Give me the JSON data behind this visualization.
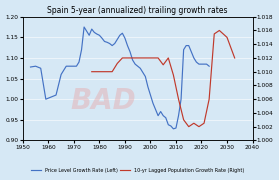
{
  "title": "Spain 5-year (annualized) trailing growth rates",
  "background_color": "#d6e8f5",
  "xlim": [
    1950,
    2040
  ],
  "xticks": [
    1950,
    1960,
    1970,
    1980,
    1990,
    2000,
    2010,
    2020,
    2030,
    2040
  ],
  "ylim_left": [
    0.9,
    1.2
  ],
  "ylim_right": [
    1.0,
    1.018
  ],
  "yticks_left": [
    0.9,
    0.95,
    1.0,
    1.05,
    1.1,
    1.15,
    1.2
  ],
  "yticks_right": [
    1.0,
    1.002,
    1.004,
    1.006,
    1.008,
    1.01,
    1.012,
    1.014,
    1.016,
    1.018
  ],
  "legend_left": "Price Level Growth Rate (Left)",
  "legend_right": "10-yr Lagged Population Growth Rate (Right)",
  "line_color_left": "#4472c4",
  "line_color_right": "#c0392b",
  "price_years": [
    1953,
    1955,
    1957,
    1959,
    1961,
    1963,
    1965,
    1967,
    1969,
    1971,
    1972,
    1973,
    1974,
    1975,
    1976,
    1977,
    1978,
    1979,
    1980,
    1981,
    1982,
    1983,
    1984,
    1985,
    1986,
    1987,
    1988,
    1989,
    1990,
    1991,
    1992,
    1993,
    1994,
    1995,
    1996,
    1997,
    1998,
    1999,
    2000,
    2001,
    2002,
    2003,
    2004,
    2005,
    2006,
    2007,
    2008,
    2009,
    2010,
    2011,
    2012,
    2013,
    2014,
    2015,
    2016,
    2017,
    2018,
    2019,
    2020,
    2021,
    2022,
    2023
  ],
  "price_values": [
    1.078,
    1.08,
    1.075,
    1.0,
    1.005,
    1.01,
    1.06,
    1.08,
    1.08,
    1.08,
    1.09,
    1.12,
    1.175,
    1.165,
    1.155,
    1.17,
    1.162,
    1.158,
    1.155,
    1.148,
    1.14,
    1.138,
    1.135,
    1.13,
    1.135,
    1.145,
    1.155,
    1.16,
    1.148,
    1.13,
    1.115,
    1.095,
    1.085,
    1.08,
    1.075,
    1.065,
    1.055,
    1.03,
    1.01,
    0.99,
    0.975,
    0.96,
    0.97,
    0.96,
    0.955,
    0.938,
    0.935,
    0.928,
    0.93,
    0.96,
    1.0,
    1.12,
    1.13,
    1.13,
    1.115,
    1.1,
    1.09,
    1.085,
    1.085,
    1.085,
    1.085,
    1.08
  ],
  "pop_years": [
    1977,
    1979,
    1981,
    1983,
    1985,
    1987,
    1989,
    1991,
    1993,
    1995,
    1997,
    1999,
    2001,
    2003,
    2005,
    2007,
    2009,
    2011,
    2013,
    2015,
    2017,
    2019,
    2021,
    2023,
    2025,
    2027,
    2030,
    2033
  ],
  "pop_values": [
    1.01,
    1.01,
    1.01,
    1.01,
    1.01,
    1.0112,
    1.012,
    1.012,
    1.012,
    1.012,
    1.012,
    1.012,
    1.012,
    1.012,
    1.011,
    1.012,
    1.0095,
    1.006,
    1.003,
    1.002,
    1.0025,
    1.002,
    1.0025,
    1.006,
    1.0155,
    1.016,
    1.015,
    1.012
  ]
}
